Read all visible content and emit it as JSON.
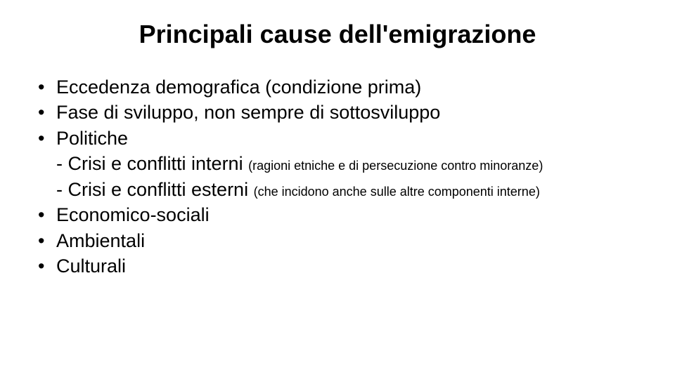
{
  "slide": {
    "title": "Principali cause dell'emigrazione",
    "title_fontsize": 36,
    "title_fontweight": "bold",
    "text_color": "#000000",
    "background_color": "#ffffff",
    "body_fontsize": 27,
    "note_fontsize": 18,
    "bullets": [
      {
        "text": "Eccedenza demografica (condizione prima)"
      },
      {
        "text": "Fase di sviluppo, non sempre di sottosviluppo"
      },
      {
        "text": "Politiche",
        "sublines": [
          {
            "prefix": "- Crisi e conflitti interni ",
            "note": "(ragioni etniche e di persecuzione contro minoranze)"
          },
          {
            "prefix": "- Crisi e conflitti esterni ",
            "note": "(che incidono anche sulle altre componenti interne)"
          }
        ]
      },
      {
        "text": "Economico-sociali"
      },
      {
        "text": "Ambientali"
      },
      {
        "text": "Culturali"
      }
    ]
  }
}
